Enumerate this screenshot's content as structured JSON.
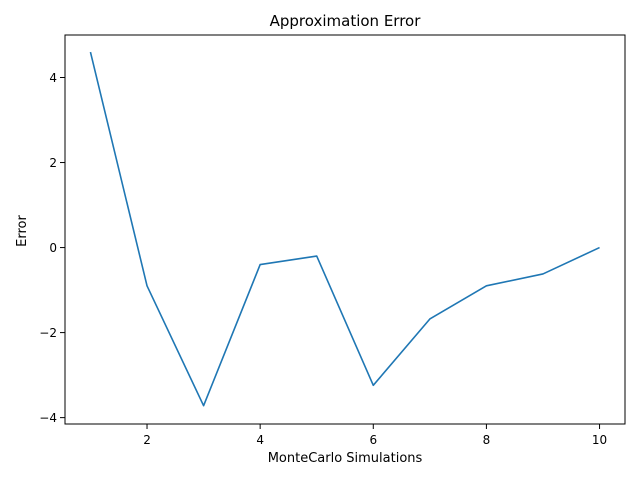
{
  "chart_data": {
    "type": "line",
    "title": "Approximation Error",
    "xlabel": "MonteCarlo Simulations",
    "ylabel": "Error",
    "xlim": [
      0.55,
      10.45
    ],
    "ylim": [
      -4.15,
      5.0
    ],
    "xticks": [
      2,
      4,
      6,
      8,
      10
    ],
    "xtick_labels": [
      "2",
      "4",
      "6",
      "8",
      "10"
    ],
    "yticks": [
      -4,
      -2,
      0,
      2,
      4
    ],
    "ytick_labels": [
      "−4",
      "−2",
      "0",
      "2",
      "4"
    ],
    "grid": false,
    "series": [
      {
        "color": "#1f77b4",
        "x": [
          1,
          2,
          3,
          4,
          5,
          6,
          7,
          8,
          9,
          10
        ],
        "values": [
          4.6,
          -0.9,
          -3.72,
          -0.4,
          -0.2,
          -3.24,
          -1.68,
          -0.9,
          -0.62,
          0.0
        ]
      }
    ]
  }
}
